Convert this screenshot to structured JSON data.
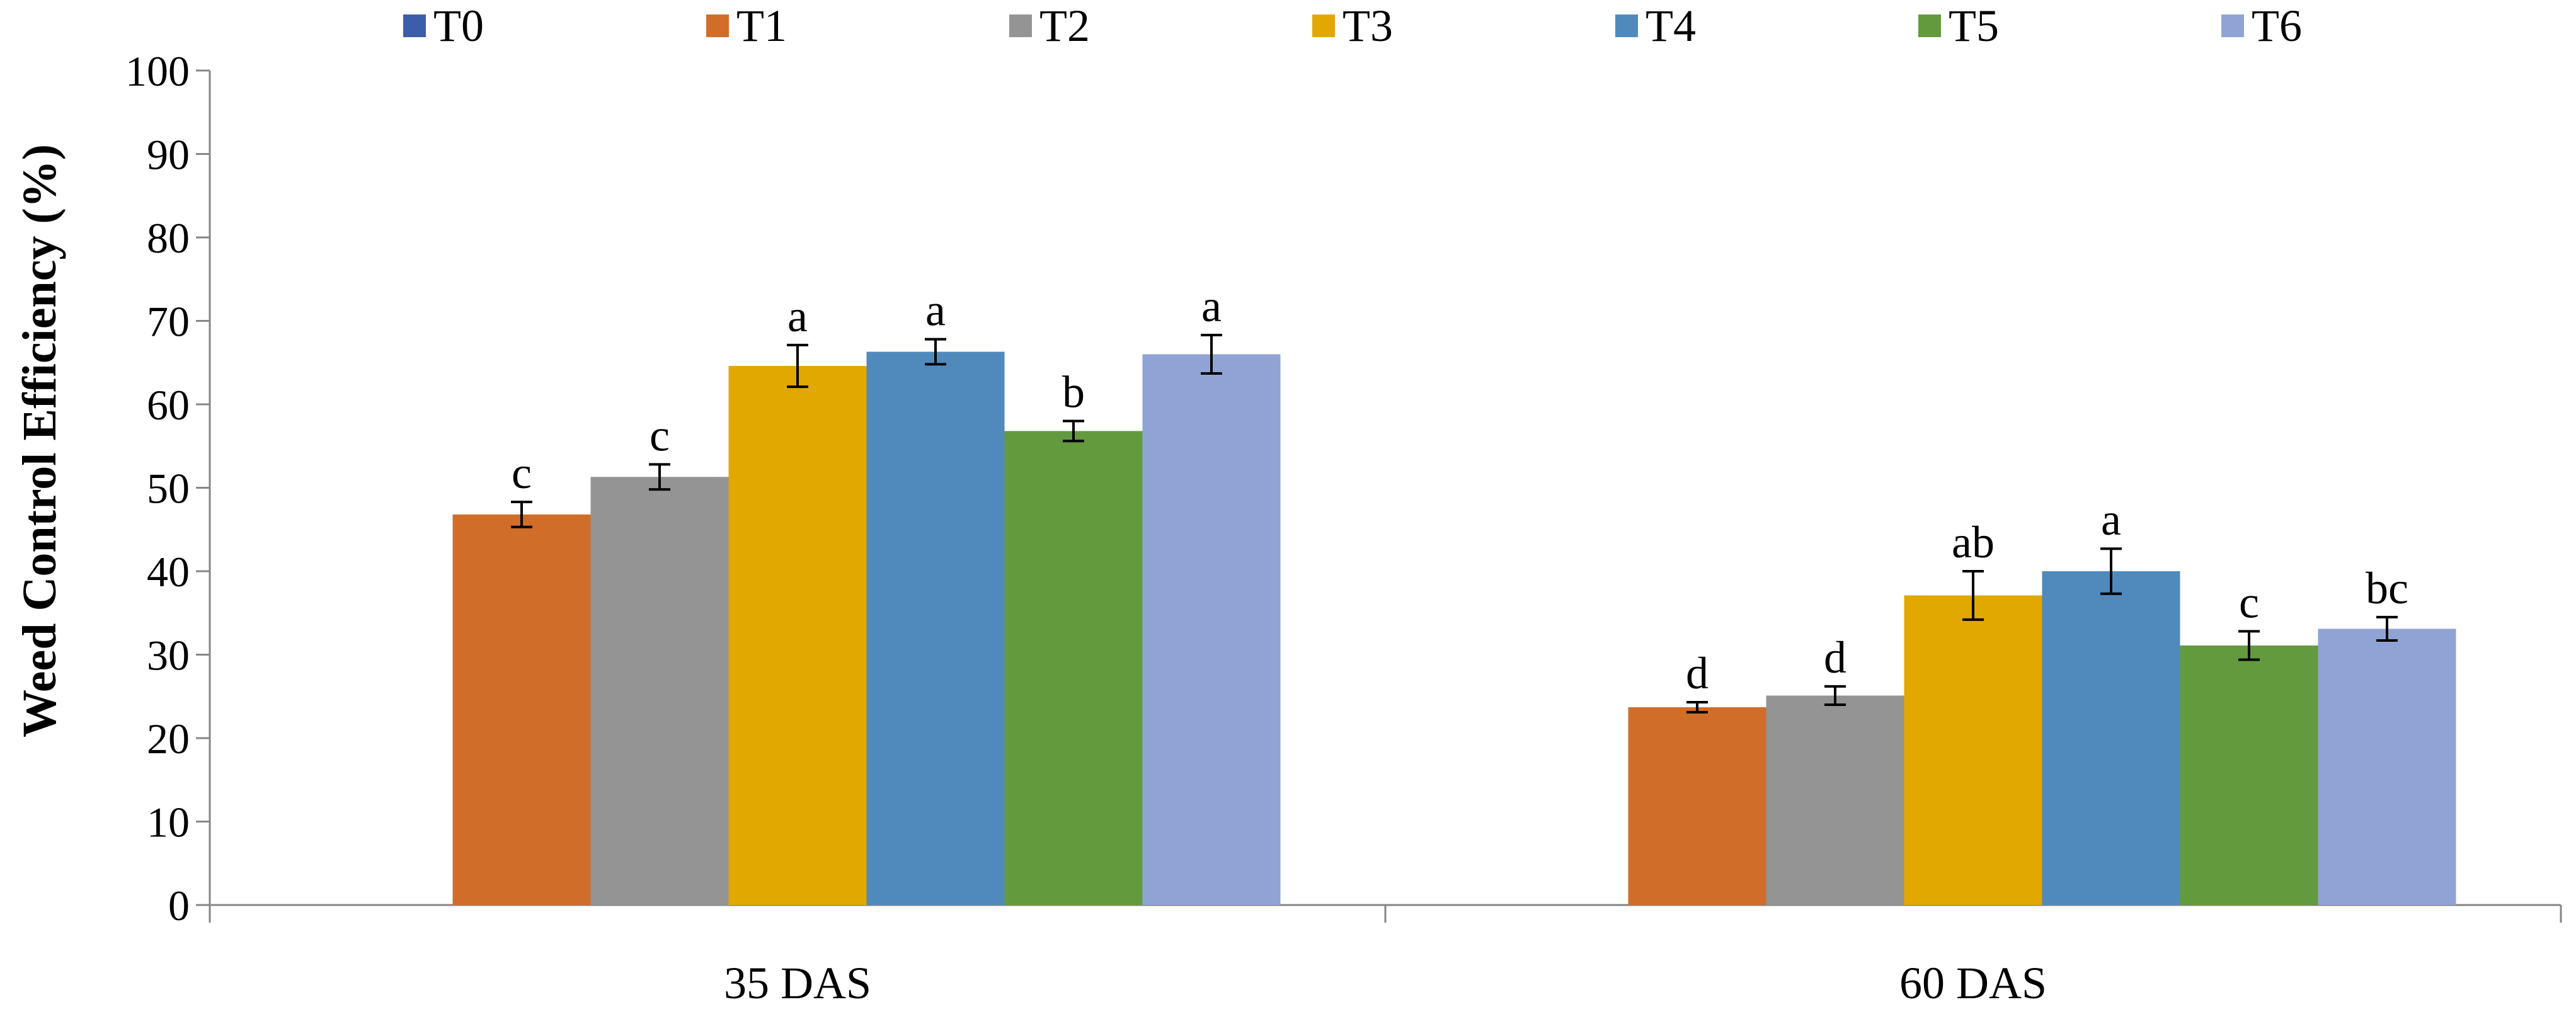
{
  "chart_data": {
    "type": "bar",
    "title": "",
    "xlabel": "",
    "ylabel": "Weed Control Efficiency (%)",
    "ylim": [
      0,
      100
    ],
    "yticks": [
      0,
      10,
      20,
      30,
      40,
      50,
      60,
      70,
      80,
      90,
      100
    ],
    "grid": false,
    "legend_position": "top",
    "categories": [
      "35 DAS",
      "60 DAS"
    ],
    "series": [
      {
        "name": "T0",
        "color": "#3a5ea8",
        "values": [
          0,
          0
        ],
        "errors": [
          0,
          0
        ],
        "labels": [
          "",
          ""
        ]
      },
      {
        "name": "T1",
        "color": "#d06d29",
        "values": [
          46.8,
          23.7
        ],
        "errors": [
          1.5,
          0.6
        ],
        "labels": [
          "c",
          "d"
        ]
      },
      {
        "name": "T2",
        "color": "#949494",
        "values": [
          51.3,
          25.1
        ],
        "errors": [
          1.5,
          1.1
        ],
        "labels": [
          "c",
          "d"
        ]
      },
      {
        "name": "T3",
        "color": "#e0a800",
        "values": [
          64.6,
          37.1
        ],
        "errors": [
          2.5,
          2.9
        ],
        "labels": [
          "a",
          "ab"
        ]
      },
      {
        "name": "T4",
        "color": "#508abd",
        "values": [
          66.3,
          40.0
        ],
        "errors": [
          1.5,
          2.7
        ],
        "labels": [
          "a",
          "a"
        ]
      },
      {
        "name": "T5",
        "color": "#639a3d",
        "values": [
          56.8,
          31.1
        ],
        "errors": [
          1.2,
          1.7
        ],
        "labels": [
          "b",
          "c"
        ]
      },
      {
        "name": "T6",
        "color": "#8fa4d4",
        "values": [
          66.0,
          33.1
        ],
        "errors": [
          2.3,
          1.4
        ],
        "labels": [
          "a",
          "bc"
        ]
      }
    ]
  }
}
